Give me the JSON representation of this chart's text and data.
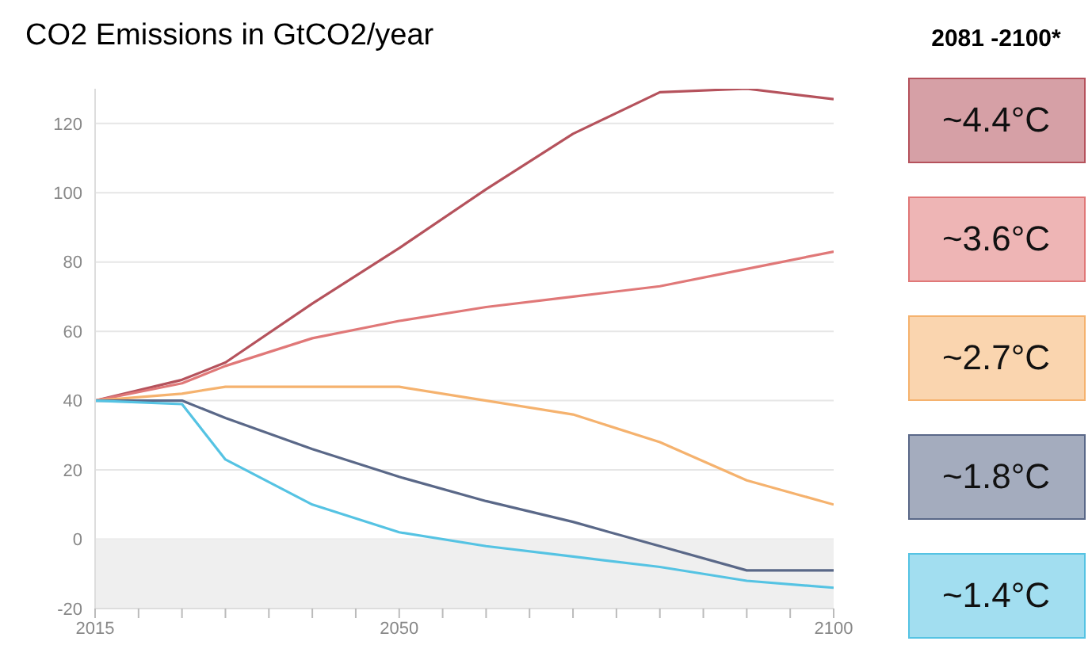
{
  "chart_data": {
    "type": "line",
    "title": "CO2 Emissions in GtCO2/year",
    "legend_title": "2081 -2100*",
    "x": [
      2015,
      2025,
      2030,
      2040,
      2050,
      2060,
      2070,
      2080,
      2090,
      2100
    ],
    "series": [
      {
        "name": "~4.4°C",
        "color": "#b5525c",
        "values": [
          40,
          46,
          51,
          68,
          84,
          101,
          117,
          129,
          130,
          127
        ]
      },
      {
        "name": "~3.6°C",
        "color": "#e07878",
        "values": [
          40,
          45,
          50,
          58,
          63,
          67,
          70,
          73,
          78,
          83
        ]
      },
      {
        "name": "~2.7°C",
        "color": "#f5b26e",
        "values": [
          40,
          42,
          44,
          44,
          44,
          40,
          36,
          28,
          17,
          10
        ]
      },
      {
        "name": "~1.8°C",
        "color": "#5a6888",
        "values": [
          40,
          40,
          35,
          26,
          18,
          11,
          5,
          -2,
          -9,
          -9
        ]
      },
      {
        "name": "~1.4°C",
        "color": "#55c3e3",
        "values": [
          40,
          39,
          23,
          10,
          2,
          -2,
          -5,
          -8,
          -12,
          -14
        ]
      }
    ],
    "xlim": [
      2015,
      2100
    ],
    "xticks": [
      2015,
      {
        "value": 2020,
        "label": null
      },
      {
        "value": 2025,
        "label": null
      },
      {
        "value": 2030,
        "label": null
      },
      {
        "value": 2035,
        "label": null
      },
      {
        "value": 2040,
        "label": null
      },
      {
        "value": 2045,
        "label": null
      },
      2050,
      {
        "value": 2055,
        "label": null
      },
      {
        "value": 2060,
        "label": null
      },
      {
        "value": 2065,
        "label": null
      },
      {
        "value": 2070,
        "label": null
      },
      {
        "value": 2075,
        "label": null
      },
      {
        "value": 2080,
        "label": null
      },
      {
        "value": 2085,
        "label": null
      },
      {
        "value": 2090,
        "label": null
      },
      {
        "value": 2095,
        "label": null
      },
      2100
    ],
    "ylim": [
      -20,
      130
    ],
    "yticks": [
      -20,
      0,
      20,
      40,
      60,
      80,
      100,
      120
    ],
    "bands": [
      {
        "axis": "y",
        "from": -20,
        "to": 0,
        "color": "#efefef"
      }
    ],
    "grid": "y",
    "legend": "right",
    "marker": "none",
    "line_style": "solid"
  }
}
